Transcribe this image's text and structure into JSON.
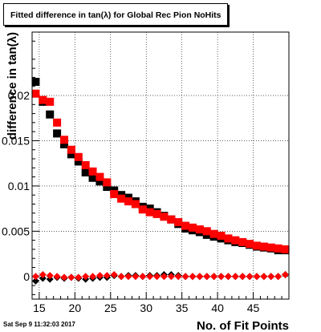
{
  "chart_data": {
    "type": "scatter",
    "title": "Fitted difference in tan(λ) for Global Rec Pion NoHits",
    "xlabel": "No. of Fit Points",
    "ylabel": "difference in tan(λ)",
    "xlim": [
      14,
      50
    ],
    "ylim": [
      -0.0025,
      0.027
    ],
    "xticks": [
      15,
      20,
      25,
      30,
      35,
      40,
      45
    ],
    "yticks": [
      0,
      0.005,
      0.01,
      0.015,
      0.02
    ],
    "ytick_labels": [
      "0",
      "0.005",
      "0.01",
      "0.015",
      "0.02"
    ],
    "grid": true,
    "series": [
      {
        "marker": "square",
        "color": "#000000",
        "x": [
          14.5,
          15.5,
          16.5,
          17.5,
          18.5,
          19.5,
          20.5,
          21.5,
          22.5,
          23.5,
          24.5,
          25.5,
          26.5,
          27.5,
          28.5,
          29.5,
          30.5,
          31.5,
          32.5,
          33.5,
          34.5,
          35.5,
          36.5,
          37.5,
          38.5,
          39.5,
          40.5,
          41.5,
          42.5,
          43.5,
          44.5,
          45.5,
          46.5,
          47.5,
          48.5,
          49.5
        ],
        "y": [
          0.0215,
          0.0193,
          0.0179,
          0.0158,
          0.0146,
          0.0135,
          0.0127,
          0.0115,
          0.0109,
          0.0105,
          0.0099,
          0.0095,
          0.009,
          0.0087,
          0.0083,
          0.0077,
          0.0075,
          0.0071,
          0.0067,
          0.0063,
          0.0058,
          0.0053,
          0.0051,
          0.0049,
          0.0046,
          0.0044,
          0.0042,
          0.004,
          0.0038,
          0.0037,
          0.0035,
          0.0033,
          0.0032,
          0.0031,
          0.0029,
          0.0029
        ]
      },
      {
        "marker": "square",
        "color": "#ff0000",
        "x": [
          14.5,
          15.5,
          16.5,
          17.5,
          18.5,
          19.5,
          20.5,
          21.5,
          22.5,
          23.5,
          24.5,
          25.5,
          26.5,
          27.5,
          28.5,
          29.5,
          30.5,
          31.5,
          32.5,
          33.5,
          34.5,
          35.5,
          36.5,
          37.5,
          38.5,
          39.5,
          40.5,
          41.5,
          42.5,
          43.5,
          44.5,
          45.5,
          46.5,
          47.5,
          48.5,
          49.5
        ],
        "y": [
          0.0202,
          0.0195,
          0.0193,
          0.017,
          0.0151,
          0.014,
          0.0132,
          0.0123,
          0.0116,
          0.011,
          0.0104,
          0.0091,
          0.0086,
          0.0083,
          0.008,
          0.0074,
          0.0071,
          0.0069,
          0.0066,
          0.0063,
          0.006,
          0.0056,
          0.0054,
          0.0052,
          0.005,
          0.0047,
          0.0045,
          0.0042,
          0.004,
          0.0038,
          0.0036,
          0.0034,
          0.0033,
          0.0032,
          0.0031,
          0.003
        ]
      },
      {
        "marker": "diamond",
        "color": "#000000",
        "x": [
          14.5,
          15.5,
          16.5,
          17.5,
          18.5,
          19.5,
          20.5,
          21.5,
          22.5,
          23.5,
          24.5,
          25.5,
          26.5,
          27.5,
          28.5,
          29.5,
          30.5,
          31.5,
          32.5,
          33.5,
          34.5,
          35.5,
          36.5,
          37.5,
          38.5,
          39.5,
          40.5,
          41.5,
          42.5,
          43.5,
          44.5,
          45.5,
          46.5,
          47.5,
          48.5,
          49.5
        ],
        "y": [
          -0.0005,
          -0.0002,
          -0.0003,
          -0.0001,
          -0.0002,
          -0.0001,
          -0.0002,
          -0.0003,
          -0.0002,
          -0.0001,
          -0.0001,
          0.0001,
          0.0,
          0.0001,
          0.0001,
          0.0,
          0.0001,
          0.0001,
          0.0002,
          0.0002,
          0.0001,
          0.0,
          0.0,
          0.0,
          0.0,
          0.0,
          0.0,
          0.0,
          0.0,
          0.0,
          0.0,
          0.0,
          0.0,
          0.0,
          0.0,
          0.0002
        ]
      },
      {
        "marker": "diamond",
        "color": "#ff0000",
        "x": [
          14.5,
          15.5,
          16.5,
          17.5,
          18.5,
          19.5,
          20.5,
          21.5,
          22.5,
          23.5,
          24.5,
          25.5,
          26.5,
          27.5,
          28.5,
          29.5,
          30.5,
          31.5,
          32.5,
          33.5,
          34.5,
          35.5,
          36.5,
          37.5,
          38.5,
          39.5,
          40.5,
          41.5,
          42.5,
          43.5,
          44.5,
          45.5,
          46.5,
          47.5,
          48.5,
          49.5
        ],
        "y": [
          0.0,
          0.0002,
          0.0001,
          0.0,
          -0.0001,
          -0.0001,
          -0.0001,
          0.0,
          0.0,
          0.0001,
          0.0001,
          0.0002,
          0.0,
          0.0,
          0.0,
          0.0,
          0.0,
          0.0,
          0.0,
          0.0,
          0.0,
          0.0,
          0.0,
          0.0,
          0.0,
          0.0,
          0.0,
          0.0,
          0.0,
          0.0,
          0.0,
          0.0,
          0.0,
          0.0,
          0.0,
          0.0002
        ]
      }
    ]
  },
  "footer": {
    "timestamp": "Sat Sep  9 11:32:03 2017"
  }
}
